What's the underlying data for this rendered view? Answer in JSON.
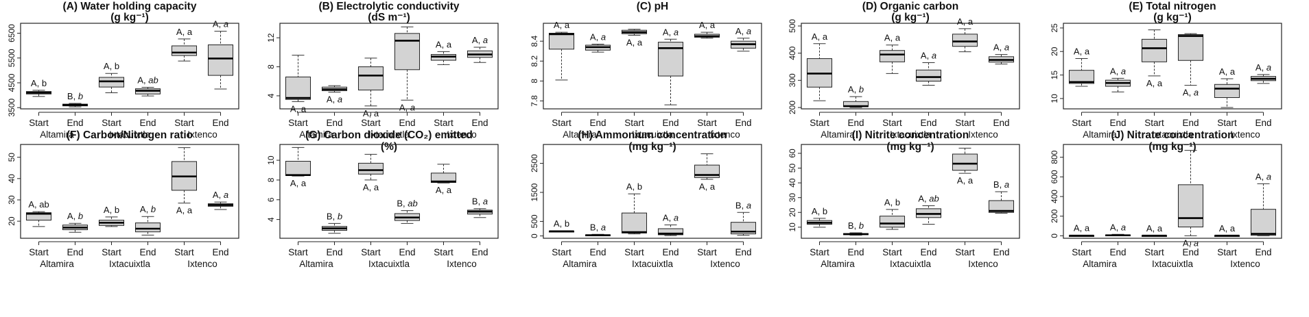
{
  "figure": {
    "sites": [
      "Altamira",
      "Ixtacuixtla",
      "Ixtenco"
    ],
    "timepoints": [
      "Start",
      "End",
      "Start",
      "End",
      "Start",
      "End"
    ]
  },
  "chart_data": [
    {
      "id": "A",
      "type": "box",
      "title": "(A) Water holding capacity",
      "subtitle": "(g kg⁻¹)",
      "ylim": [
        3450,
        6900
      ],
      "yticks": [
        3500,
        4500,
        5500,
        6500
      ],
      "boxes": [
        {
          "min": 3950,
          "q1": 4050,
          "med": 4100,
          "q3": 4150,
          "max": 4200,
          "label": "A, ",
          "letter": "b",
          "italic": false,
          "pos": "above"
        },
        {
          "min": 3530,
          "q1": 3570,
          "med": 3610,
          "q3": 3640,
          "max": 3670,
          "label": "B, ",
          "letter": "b",
          "italic": true,
          "pos": "above"
        },
        {
          "min": 4100,
          "q1": 4330,
          "med": 4560,
          "q3": 4720,
          "max": 4880,
          "label": "A, ",
          "letter": "b",
          "italic": false,
          "pos": "above"
        },
        {
          "min": 3970,
          "q1": 4050,
          "med": 4180,
          "q3": 4260,
          "max": 4320,
          "label": "A, ",
          "letter": "ab",
          "italic": true,
          "pos": "above"
        },
        {
          "min": 5380,
          "q1": 5600,
          "med": 5720,
          "q3": 5990,
          "max": 6270,
          "label": "A, ",
          "letter": "a",
          "italic": false,
          "pos": "above"
        },
        {
          "min": 4250,
          "q1": 4800,
          "med": 5480,
          "q3": 6030,
          "max": 6580,
          "label": "A, ",
          "letter": "a",
          "italic": true,
          "pos": "above"
        }
      ]
    },
    {
      "id": "B",
      "type": "box",
      "title": "(B) Electrolytic conductivity",
      "subtitle": "(dS m⁻¹)",
      "ylim": [
        2.2,
        14
      ],
      "yticks": [
        4,
        8,
        12
      ],
      "boxes": [
        {
          "min": 3.2,
          "q1": 3.5,
          "med": 3.7,
          "q3": 6.6,
          "max": 9.6,
          "label": "A, ",
          "letter": "a",
          "italic": false,
          "pos": "below"
        },
        {
          "min": 4.5,
          "q1": 4.7,
          "med": 4.9,
          "q3": 5.2,
          "max": 5.4,
          "label": "A, ",
          "letter": "a",
          "italic": true,
          "pos": "below"
        },
        {
          "min": 2.6,
          "q1": 4.8,
          "med": 6.8,
          "q3": 8.0,
          "max": 9.2,
          "label": "A, ",
          "letter": "a",
          "italic": false,
          "pos": "below"
        },
        {
          "min": 3.4,
          "q1": 7.6,
          "med": 11.6,
          "q3": 12.6,
          "max": 13.5,
          "label": "A, ",
          "letter": "a",
          "italic": true,
          "pos": "below"
        },
        {
          "min": 8.3,
          "q1": 8.9,
          "med": 9.4,
          "q3": 9.7,
          "max": 10.1,
          "label": "A, ",
          "letter": "a",
          "italic": false,
          "pos": "above"
        },
        {
          "min": 8.6,
          "q1": 9.3,
          "med": 9.7,
          "q3": 10.2,
          "max": 10.7,
          "label": "A, ",
          "letter": "a",
          "italic": true,
          "pos": "above"
        }
      ]
    },
    {
      "id": "C",
      "type": "box",
      "title": "(C) pH",
      "subtitle": "",
      "ylim": [
        7.72,
        8.58
      ],
      "yticks": [
        7.8,
        8.0,
        8.2,
        8.4
      ],
      "boxes": [
        {
          "min": 8.01,
          "q1": 8.32,
          "med": 8.47,
          "q3": 8.48,
          "max": 8.49,
          "label": "A, ",
          "letter": "a",
          "italic": false,
          "pos": "above"
        },
        {
          "min": 8.29,
          "q1": 8.31,
          "med": 8.34,
          "q3": 8.36,
          "max": 8.37,
          "label": "A, ",
          "letter": "a",
          "italic": true,
          "pos": "above"
        },
        {
          "min": 8.46,
          "q1": 8.475,
          "med": 8.49,
          "q3": 8.51,
          "max": 8.52,
          "label": "A, ",
          "letter": "a",
          "italic": false,
          "pos": "below"
        },
        {
          "min": 7.76,
          "q1": 8.05,
          "med": 8.33,
          "q3": 8.39,
          "max": 8.42,
          "label": "A, ",
          "letter": "a",
          "italic": true,
          "pos": "above"
        },
        {
          "min": 8.43,
          "q1": 8.44,
          "med": 8.45,
          "q3": 8.47,
          "max": 8.49,
          "label": "A, ",
          "letter": "a",
          "italic": false,
          "pos": "above"
        },
        {
          "min": 8.3,
          "q1": 8.33,
          "med": 8.37,
          "q3": 8.4,
          "max": 8.43,
          "label": "A, ",
          "letter": "a",
          "italic": true,
          "pos": "above"
        }
      ]
    },
    {
      "id": "D",
      "type": "box",
      "title": "(D) Organic carbon",
      "subtitle": "(g kg⁻¹)",
      "ylim": [
        195,
        510
      ],
      "yticks": [
        200,
        300,
        400,
        500
      ],
      "boxes": [
        {
          "min": 225,
          "q1": 275,
          "med": 325,
          "q3": 380,
          "max": 435,
          "label": "A, ",
          "letter": "a",
          "italic": false,
          "pos": "above"
        },
        {
          "min": 200,
          "q1": 203,
          "med": 205,
          "q3": 222,
          "max": 240,
          "label": "A, ",
          "letter": "b",
          "italic": true,
          "pos": "above"
        },
        {
          "min": 325,
          "q1": 368,
          "med": 395,
          "q3": 410,
          "max": 430,
          "label": "A, ",
          "letter": "a",
          "italic": false,
          "pos": "above"
        },
        {
          "min": 282,
          "q1": 297,
          "med": 312,
          "q3": 338,
          "max": 365,
          "label": "A, ",
          "letter": "a",
          "italic": true,
          "pos": "above"
        },
        {
          "min": 405,
          "q1": 425,
          "med": 443,
          "q3": 470,
          "max": 490,
          "label": "A, ",
          "letter": "a",
          "italic": false,
          "pos": "above"
        },
        {
          "min": 360,
          "q1": 367,
          "med": 375,
          "q3": 387,
          "max": 395,
          "label": "A, ",
          "letter": "a",
          "italic": true,
          "pos": "above"
        }
      ]
    },
    {
      "id": "E",
      "type": "box",
      "title": "(E) Total nitrogen",
      "subtitle": "(g kg⁻¹)",
      "ylim": [
        7.8,
        26
      ],
      "yticks": [
        10,
        15,
        20,
        25
      ],
      "boxes": [
        {
          "min": 12.6,
          "q1": 13.2,
          "med": 13.5,
          "q3": 16.0,
          "max": 18.5,
          "label": "A, ",
          "letter": "a",
          "italic": false,
          "pos": "above"
        },
        {
          "min": 11.4,
          "q1": 12.6,
          "med": 13.3,
          "q3": 13.9,
          "max": 14.3,
          "label": "A, ",
          "letter": "a",
          "italic": true,
          "pos": "above"
        },
        {
          "min": 14.8,
          "q1": 17.8,
          "med": 20.7,
          "q3": 22.6,
          "max": 24.6,
          "label": "A, ",
          "letter": "a",
          "italic": false,
          "pos": "below"
        },
        {
          "min": 12.8,
          "q1": 18.1,
          "med": 23.3,
          "q3": 23.6,
          "max": 23.8,
          "label": "A, ",
          "letter": "a",
          "italic": true,
          "pos": "below"
        },
        {
          "min": 8.1,
          "q1": 10.2,
          "med": 12.1,
          "q3": 13.0,
          "max": 14.2,
          "label": "A, ",
          "letter": "a",
          "italic": false,
          "pos": "above"
        },
        {
          "min": 13.2,
          "q1": 13.8,
          "med": 14.2,
          "q3": 14.7,
          "max": 15.1,
          "label": "A, ",
          "letter": "a",
          "italic": true,
          "pos": "above"
        }
      ]
    },
    {
      "id": "F",
      "type": "box",
      "title": "(F) Carbon/Nitrogen ratio",
      "subtitle": "",
      "ylim": [
        12,
        56
      ],
      "yticks": [
        20,
        30,
        40,
        50
      ],
      "boxes": [
        {
          "min": 17.5,
          "q1": 20.5,
          "med": 23.5,
          "q3": 24.0,
          "max": 24.5,
          "label": "A, ",
          "letter": "ab",
          "italic": false,
          "pos": "above"
        },
        {
          "min": 14.8,
          "q1": 16.0,
          "med": 17.0,
          "q3": 18.2,
          "max": 19.0,
          "label": "A, ",
          "letter": "b",
          "italic": true,
          "pos": "above"
        },
        {
          "min": 17.5,
          "q1": 18.0,
          "med": 19.3,
          "q3": 20.5,
          "max": 22.0,
          "label": "A, ",
          "letter": "b",
          "italic": false,
          "pos": "above"
        },
        {
          "min": 13.5,
          "q1": 15.0,
          "med": 16.5,
          "q3": 19.2,
          "max": 22.2,
          "label": "A, ",
          "letter": "b",
          "italic": true,
          "pos": "above"
        },
        {
          "min": 28.5,
          "q1": 34.5,
          "med": 41.0,
          "q3": 48.0,
          "max": 54.5,
          "label": "A, ",
          "letter": "a",
          "italic": false,
          "pos": "below"
        },
        {
          "min": 25.5,
          "q1": 27.0,
          "med": 27.6,
          "q3": 28.2,
          "max": 29.0,
          "label": "A, ",
          "letter": "a",
          "italic": true,
          "pos": "above"
        }
      ]
    },
    {
      "id": "G",
      "type": "box",
      "title": "(G) Carbon dioxide (CO₂) emitted",
      "subtitle": "(%)",
      "ylim": [
        2.1,
        11.6
      ],
      "yticks": [
        4,
        6,
        8,
        10
      ],
      "boxes": [
        {
          "min": 8.4,
          "q1": 8.45,
          "med": 8.5,
          "q3": 9.9,
          "max": 11.3,
          "label": "A, ",
          "letter": "a",
          "italic": false,
          "pos": "below"
        },
        {
          "min": 2.6,
          "q1": 2.9,
          "med": 3.1,
          "q3": 3.3,
          "max": 3.6,
          "label": "B, ",
          "letter": "b",
          "italic": true,
          "pos": "above"
        },
        {
          "min": 8.0,
          "q1": 8.6,
          "med": 9.0,
          "q3": 9.7,
          "max": 10.6,
          "label": "A, ",
          "letter": "a",
          "italic": false,
          "pos": "below"
        },
        {
          "min": 3.6,
          "q1": 3.9,
          "med": 4.2,
          "q3": 4.6,
          "max": 4.9,
          "label": "B, ",
          "letter": "ab",
          "italic": true,
          "pos": "above"
        },
        {
          "min": 7.7,
          "q1": 7.75,
          "med": 7.85,
          "q3": 8.7,
          "max": 9.6,
          "label": "A, ",
          "letter": "a",
          "italic": false,
          "pos": "below"
        },
        {
          "min": 4.2,
          "q1": 4.55,
          "med": 4.8,
          "q3": 4.95,
          "max": 5.1,
          "label": "B, ",
          "letter": "a",
          "italic": true,
          "pos": "above"
        }
      ]
    },
    {
      "id": "H",
      "type": "box",
      "title": "(H) Ammonium concentration",
      "subtitle": "(mg kg⁻¹)",
      "ylim": [
        -80,
        3150
      ],
      "yticks": [
        0,
        500,
        1500,
        2500
      ],
      "boxes": [
        {
          "min": 145,
          "q1": 150,
          "med": 160,
          "q3": 168,
          "max": 175,
          "label": "A, ",
          "letter": "b",
          "italic": false,
          "pos": "above"
        },
        {
          "min": 5,
          "q1": 15,
          "med": 25,
          "q3": 40,
          "max": 55,
          "label": "B, ",
          "letter": "a",
          "italic": true,
          "pos": "above"
        },
        {
          "min": 70,
          "q1": 100,
          "med": 130,
          "q3": 790,
          "max": 1450,
          "label": "A, ",
          "letter": "b",
          "italic": false,
          "pos": "above"
        },
        {
          "min": 10,
          "q1": 40,
          "med": 80,
          "q3": 250,
          "max": 380,
          "label": "A, ",
          "letter": "a",
          "italic": true,
          "pos": "above"
        },
        {
          "min": 1950,
          "q1": 2010,
          "med": 2100,
          "q3": 2440,
          "max": 2830,
          "label": "A, ",
          "letter": "a",
          "italic": false,
          "pos": "below"
        },
        {
          "min": 20,
          "q1": 70,
          "med": 150,
          "q3": 470,
          "max": 810,
          "label": "B, ",
          "letter": "a",
          "italic": true,
          "pos": "above"
        }
      ]
    },
    {
      "id": "I",
      "type": "box",
      "title": "(I) Nitrite concentration",
      "subtitle": "(mg kg⁻¹)",
      "ylim": [
        2.5,
        66
      ],
      "yticks": [
        10,
        20,
        30,
        40,
        50,
        60
      ],
      "boxes": [
        {
          "min": 10.0,
          "q1": 12.0,
          "med": 13.0,
          "q3": 14.5,
          "max": 16.0,
          "label": "A, ",
          "letter": "b",
          "italic": false,
          "pos": "above"
        },
        {
          "min": 4.6,
          "q1": 4.9,
          "med": 5.3,
          "q3": 5.7,
          "max": 6.2,
          "label": "B, ",
          "letter": "b",
          "italic": true,
          "pos": "above"
        },
        {
          "min": 8.5,
          "q1": 10.0,
          "med": 12.5,
          "q3": 17.5,
          "max": 22.0,
          "label": "A, ",
          "letter": "b",
          "italic": false,
          "pos": "above"
        },
        {
          "min": 12.0,
          "q1": 16.5,
          "med": 19.0,
          "q3": 22.5,
          "max": 24.5,
          "label": "A, ",
          "letter": "ab",
          "italic": true,
          "pos": "above"
        },
        {
          "min": 46.5,
          "q1": 48.5,
          "med": 53.0,
          "q3": 59.5,
          "max": 63.5,
          "label": "A, ",
          "letter": "a",
          "italic": false,
          "pos": "below"
        },
        {
          "min": 19.5,
          "q1": 20.0,
          "med": 21.0,
          "q3": 28.0,
          "max": 34.0,
          "label": "B, ",
          "letter": "a",
          "italic": true,
          "pos": "above"
        }
      ]
    },
    {
      "id": "J",
      "type": "box",
      "title": "(J) Nitrate concentration",
      "subtitle": "(mg kg⁻¹)",
      "ylim": [
        -25,
        930
      ],
      "yticks": [
        0,
        200,
        400,
        600,
        800
      ],
      "boxes": [
        {
          "min": 0,
          "q1": 1,
          "med": 2,
          "q3": 3,
          "max": 5,
          "label": "A, ",
          "letter": "a",
          "italic": false,
          "pos": "above"
        },
        {
          "min": 0,
          "q1": 2,
          "med": 5,
          "q3": 10,
          "max": 15,
          "label": "A, ",
          "letter": "a",
          "italic": true,
          "pos": "above"
        },
        {
          "min": 0,
          "q1": 1,
          "med": 2,
          "q3": 3,
          "max": 4,
          "label": "A, ",
          "letter": "a",
          "italic": false,
          "pos": "above"
        },
        {
          "min": 0,
          "q1": 90,
          "med": 180,
          "q3": 520,
          "max": 870,
          "label": "A, ",
          "letter": "a",
          "italic": true,
          "pos": "below"
        },
        {
          "min": 0,
          "q1": 1,
          "med": 2,
          "q3": 3,
          "max": 4,
          "label": "A, ",
          "letter": "a",
          "italic": false,
          "pos": "above"
        },
        {
          "min": 0,
          "q1": 5,
          "med": 20,
          "q3": 270,
          "max": 530,
          "label": "A, ",
          "letter": "a",
          "italic": true,
          "pos": "above"
        }
      ]
    }
  ]
}
